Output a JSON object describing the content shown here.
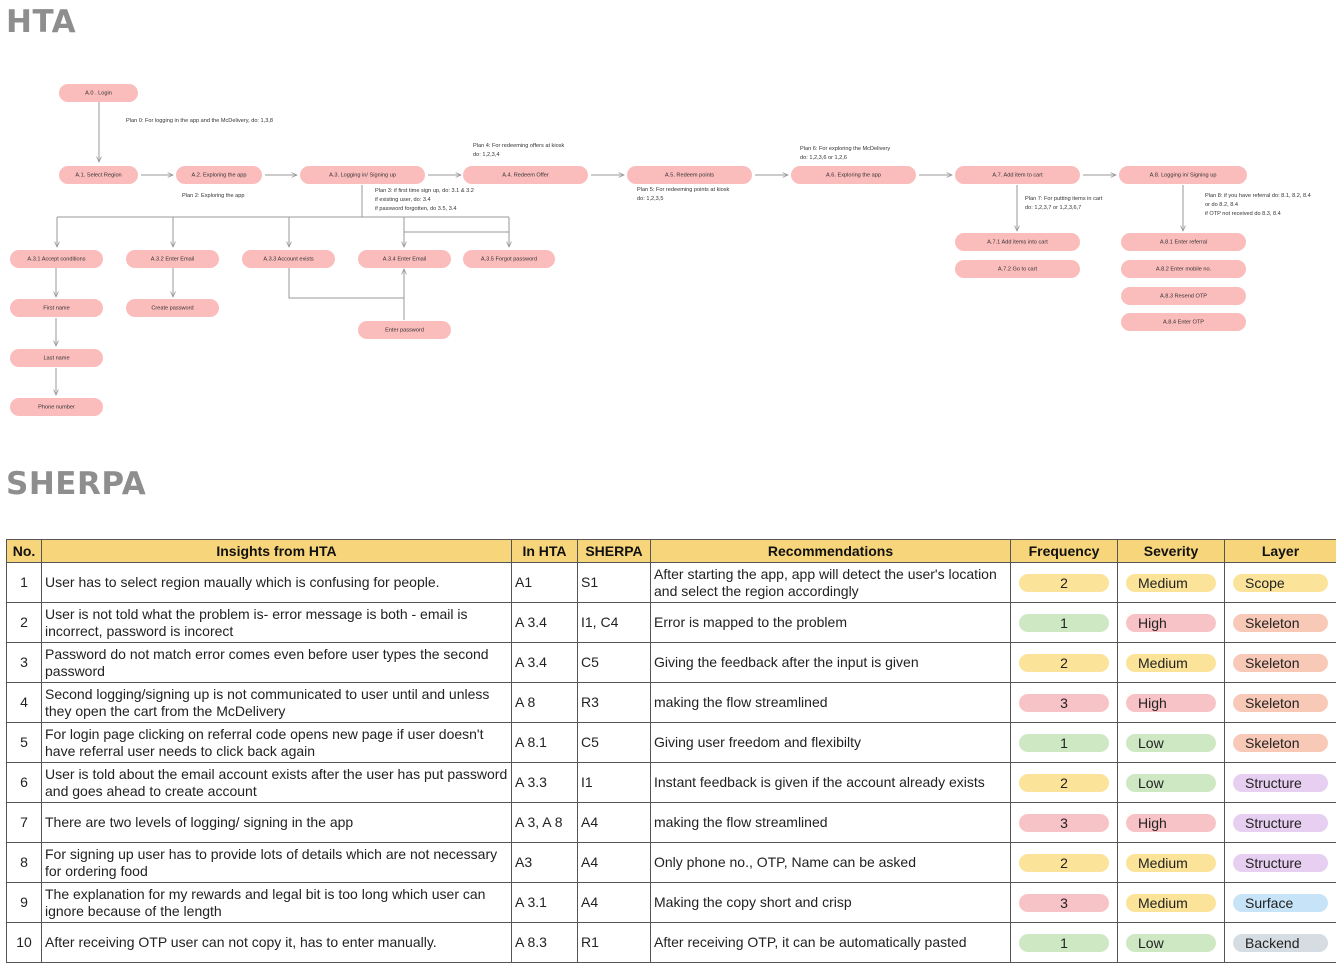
{
  "hta": {
    "title": "HTA",
    "nodes": {
      "a0": "A.0 . Login",
      "a1": "A.1. Select Region",
      "a2": "A.2. Exploring the app",
      "a3": "A.3. Logging in/ Signing up",
      "a4": "A.4. Redeem Offer",
      "a5": "A.5. Redeem points",
      "a6": "A.6. Exploring the app",
      "a7": "A.7. Add item to cart",
      "a8": "A.8. Logging in/ Signing up",
      "a31": "A.3.1 Accept conditions",
      "a32": "A.3.2 Enter Email",
      "a33": "A.3.3 Account exists",
      "a34": "A.3.4 Enter Email",
      "a35": "A.3.5 Forgot password",
      "first_name": "First name",
      "last_name": "Last name",
      "phone_number": "Phone number",
      "create_password": "Create password",
      "enter_password": "Enter password",
      "a71": "A.7.1 Add items into cart",
      "a72": "A.7.2 Go to cart",
      "a81": "A.8.1 Enter referral",
      "a82": "A.8.2 Enter mobile no.",
      "a83": "A.8.3 Resend OTP",
      "a84": "A.8.4 Enter OTP"
    },
    "plans": {
      "plan0": "Plan 0: For logging in the app and the McDelivery, do: 1,3,8",
      "plan2": "Plan 2: Exploring the app",
      "plan3_l1": "Plan 3: if first time sign up, do: 3.1 & 3.2",
      "plan3_l2": "if existing user, do: 3.4",
      "plan3_l3": "if password forgotten, do 3.5, 3.4",
      "plan4_l1": "Plan 4: For redeeming offers at kiosk",
      "plan4_l2": "do: 1,2,3,4",
      "plan5_l1": "Plan 5: For redeeming points at kiosk",
      "plan5_l2": "do: 1,2,3,5",
      "plan6_l1": "Plan 6: For exploring the McDelivery",
      "plan6_l2": "do: 1,2,3,6 or 1,2,6",
      "plan7_l1": "Plan 7: For putting items in cart",
      "plan7_l2": "do: 1,2,3,7 or 1,2,3,6,7",
      "plan8_l1": "Plan 8: if you have referral do: 8.1, 8.2, 8.4",
      "plan8_l2": "or do 8.2, 8.4",
      "plan8_l3": "if OTP not received do 8.3, 8.4"
    }
  },
  "sherpa": {
    "title": "SHERPA",
    "headers": {
      "no": "No.",
      "insights": "Insights from HTA",
      "in_hta": "In HTA",
      "sherpa": "SHERPA",
      "recommendations": "Recommendations",
      "frequency": "Frequency",
      "severity": "Severity",
      "layer": "Layer"
    },
    "colors": {
      "freq_1": "#cfe8c4",
      "freq_2": "#fbe39a",
      "freq_3": "#f8c3c6",
      "sev_low": "#cfe8c4",
      "sev_medium": "#fbe39a",
      "sev_high": "#f8c3c6",
      "layer_scope": "#fbe39a",
      "layer_skeleton": "#f9c9b8",
      "layer_structure": "#e6cff0",
      "layer_surface": "#c7e3f7",
      "layer_backend": "#d5dce2"
    },
    "rows": [
      {
        "no": "1",
        "insight": "User has to select region maually which is confusing for people.",
        "in_hta": "A1",
        "sherpa": "S1",
        "recommendation": "After starting the app, app will detect the user's location and select the region accordingly",
        "frequency": "2",
        "severity": "Medium",
        "layer": "Scope"
      },
      {
        "no": "2",
        "insight": "User is not told what the problem is- error message is both - email is incorrect, password is incorect",
        "in_hta": "A 3.4",
        "sherpa": "I1, C4",
        "recommendation": "Error is mapped to the problem",
        "frequency": "1",
        "severity": "High",
        "layer": "Skeleton"
      },
      {
        "no": "3",
        "insight": "Password do not match error comes even before user types the second password",
        "in_hta": "A 3.4",
        "sherpa": "C5",
        "recommendation": "Giving the feedback after the input is given",
        "frequency": "2",
        "severity": "Medium",
        "layer": "Skeleton"
      },
      {
        "no": "4",
        "insight": "Second logging/signing up is not communicated to user until and unless they open the cart from the McDelivery",
        "in_hta": "A 8",
        "sherpa": "R3",
        "recommendation": "making the flow streamlined",
        "frequency": "3",
        "severity": "High",
        "layer": "Skeleton"
      },
      {
        "no": "5",
        "insight": "For login page clicking on referral code opens new page if user doesn't have referral user needs to click back again",
        "in_hta": "A 8.1",
        "sherpa": "C5",
        "recommendation": "Giving user freedom and flexibilty",
        "frequency": "1",
        "severity": "Low",
        "layer": "Skeleton"
      },
      {
        "no": "6",
        "insight": "User is told about the email account exists after the user has put password and goes ahead to create account",
        "in_hta": "A 3.3",
        "sherpa": "I1",
        "recommendation": "Instant feedback is given if the account already exists",
        "frequency": "2",
        "severity": "Low",
        "layer": "Structure"
      },
      {
        "no": "7",
        "insight": "There are two levels of logging/ signing in the app",
        "in_hta": "A 3, A 8",
        "sherpa": "A4",
        "recommendation": "making the flow streamlined",
        "frequency": "3",
        "severity": "High",
        "layer": "Structure"
      },
      {
        "no": "8",
        "insight": "For signing up user has to provide lots of details which are not necessary for ordering food",
        "in_hta": "A3",
        "sherpa": "A4",
        "recommendation": "Only phone no., OTP, Name can be  asked",
        "frequency": "2",
        "severity": "Medium",
        "layer": "Structure"
      },
      {
        "no": "9",
        "insight": "The explanation for my rewards and legal bit is too long which user can ignore because of the length",
        "in_hta": "A 3.1",
        "sherpa": "A4",
        "recommendation": "Making the copy short and crisp",
        "frequency": "3",
        "severity": "Medium",
        "layer": "Surface"
      },
      {
        "no": "10",
        "insight": "After receiving OTP user can not copy it, has to enter manually.",
        "in_hta": "A 8.3",
        "sherpa": "R1",
        "recommendation": "After receiving OTP, it can be automatically pasted",
        "frequency": "1",
        "severity": "Low",
        "layer": "Backend"
      }
    ]
  }
}
